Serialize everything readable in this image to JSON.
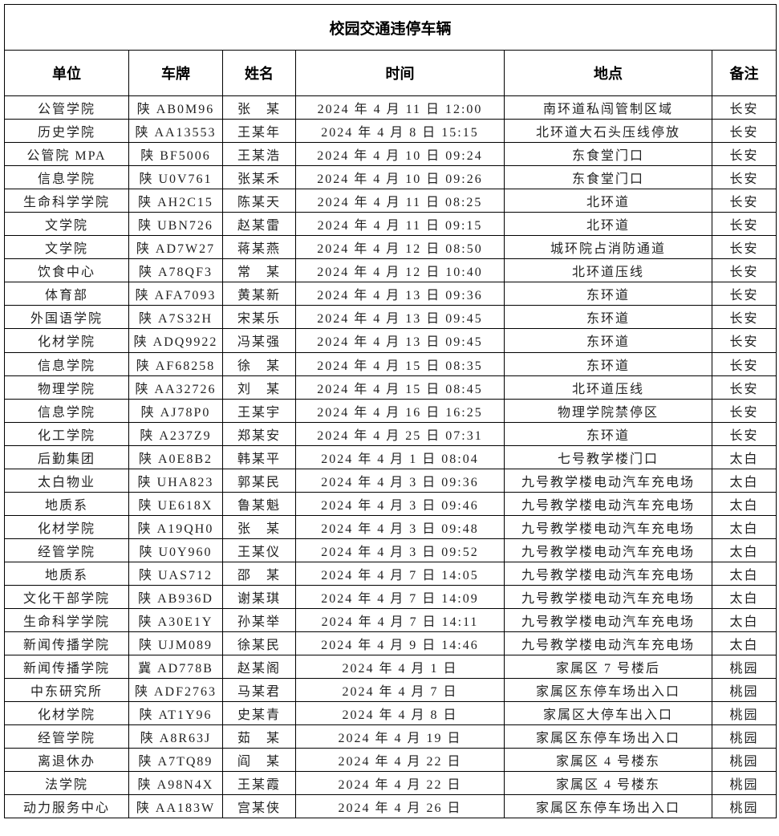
{
  "title": "校园交通违停车辆",
  "columns": [
    "单位",
    "车牌",
    "姓名",
    "时间",
    "地点",
    "备注"
  ],
  "rows": [
    [
      "公管学院",
      "陕 AB0M96",
      "张　某",
      "2024 年 4 月 11 日 12:00",
      "南环道私闯管制区域",
      "长安"
    ],
    [
      "历史学院",
      "陕 AA13553",
      "王某年",
      "2024 年 4 月 8 日 15:15",
      "北环道大石头压线停放",
      "长安"
    ],
    [
      "公管院 MPA",
      "陕 BF5006",
      "王某浩",
      "2024 年 4 月 10 日 09:24",
      "东食堂门口",
      "长安"
    ],
    [
      "信息学院",
      "陕 U0V761",
      "张某禾",
      "2024 年 4 月 10 日 09:26",
      "东食堂门口",
      "长安"
    ],
    [
      "生命科学学院",
      "陕 AH2C15",
      "陈某天",
      "2024 年 4 月 11 日 08:25",
      "北环道",
      "长安"
    ],
    [
      "文学院",
      "陕 UBN726",
      "赵某雷",
      "2024 年 4 月 11 日 09:15",
      "北环道",
      "长安"
    ],
    [
      "文学院",
      "陕 AD7W27",
      "蒋某燕",
      "2024 年 4 月 12 日 08:50",
      "城环院占消防通道",
      "长安"
    ],
    [
      "饮食中心",
      "陕 A78QF3",
      "常　某",
      "2024 年 4 月 12 日 10:40",
      "北环道压线",
      "长安"
    ],
    [
      "体育部",
      "陕 AFA7093",
      "黄某新",
      "2024 年 4 月 13 日 09:36",
      "东环道",
      "长安"
    ],
    [
      "外国语学院",
      "陕 A7S32H",
      "宋某乐",
      "2024 年 4 月 13 日 09:45",
      "东环道",
      "长安"
    ],
    [
      "化材学院",
      "陕 ADQ9922",
      "冯某强",
      "2024 年 4 月 13 日 09:45",
      "东环道",
      "长安"
    ],
    [
      "信息学院",
      "陕 AF68258",
      "徐　某",
      "2024 年 4 月 15 日 08:35",
      "东环道",
      "长安"
    ],
    [
      "物理学院",
      "陕 AA32726",
      "刘　某",
      "2024 年 4 月 15 日 08:45",
      "北环道压线",
      "长安"
    ],
    [
      "信息学院",
      "陕 AJ78P0",
      "王某宇",
      "2024 年 4 月 16 日 16:25",
      "物理学院禁停区",
      "长安"
    ],
    [
      "化工学院",
      "陕 A237Z9",
      "郑某安",
      "2024 年 4 月 25 日 07:31",
      "东环道",
      "长安"
    ],
    [
      "后勤集团",
      "陕 A0E8B2",
      "韩某平",
      "2024 年 4 月 1 日 08:04",
      "七号教学楼门口",
      "太白"
    ],
    [
      "太白物业",
      "陕 UHA823",
      "郭某民",
      "2024 年 4 月 3 日 09:36",
      "九号教学楼电动汽车充电场",
      "太白"
    ],
    [
      "地质系",
      "陕 UE618X",
      "鲁某魁",
      "2024 年 4 月 3 日 09:46",
      "九号教学楼电动汽车充电场",
      "太白"
    ],
    [
      "化材学院",
      "陕 A19QH0",
      "张　某",
      "2024 年 4 月 3 日 09:48",
      "九号教学楼电动汽车充电场",
      "太白"
    ],
    [
      "经管学院",
      "陕 U0Y960",
      "王某仪",
      "2024 年 4 月 3 日 09:52",
      "九号教学楼电动汽车充电场",
      "太白"
    ],
    [
      "地质系",
      "陕 UAS712",
      "邵　某",
      "2024 年 4 月 7 日 14:05",
      "九号教学楼电动汽车充电场",
      "太白"
    ],
    [
      "文化干部学院",
      "陕 AB936D",
      "谢某琪",
      "2024 年 4 月 7 日 14:09",
      "九号教学楼电动汽车充电场",
      "太白"
    ],
    [
      "生命科学学院",
      "陕 A30E1Y",
      "孙某举",
      "2024 年 4 月 7 日 14:11",
      "九号教学楼电动汽车充电场",
      "太白"
    ],
    [
      "新闻传播学院",
      "陕 UJM089",
      "徐某民",
      "2024 年 4 月 9 日 14:46",
      "九号教学楼电动汽车充电场",
      "太白"
    ],
    [
      "新闻传播学院",
      "冀 AD778B",
      "赵某阁",
      "2024 年 4 月 1 日",
      "家属区 7 号楼后",
      "桃园"
    ],
    [
      "中东研究所",
      "陕 ADF2763",
      "马某君",
      "2024 年 4 月 7 日",
      "家属区东停车场出入口",
      "桃园"
    ],
    [
      "化材学院",
      "陕 AT1Y96",
      "史某青",
      "2024 年 4 月 8 日",
      "家属区大停车出入口",
      "桃园"
    ],
    [
      "经管学院",
      "陕 A8R63J",
      "茹　某",
      "2024 年 4 月 19 日",
      "家属区东停车场出入口",
      "桃园"
    ],
    [
      "离退休办",
      "陕 A7TQ89",
      "阎　某",
      "2024 年 4 月 22 日",
      "家属区 4 号楼东",
      "桃园"
    ],
    [
      "法学院",
      "陕 A98N4X",
      "王某霞",
      "2024 年 4 月 22 日",
      "家属区 4 号楼东",
      "桃园"
    ],
    [
      "动力服务中心",
      "陕 AA183W",
      "宫某侠",
      "2024 年 4 月 26 日",
      "家属区东停车场出入口",
      "桃园"
    ]
  ]
}
